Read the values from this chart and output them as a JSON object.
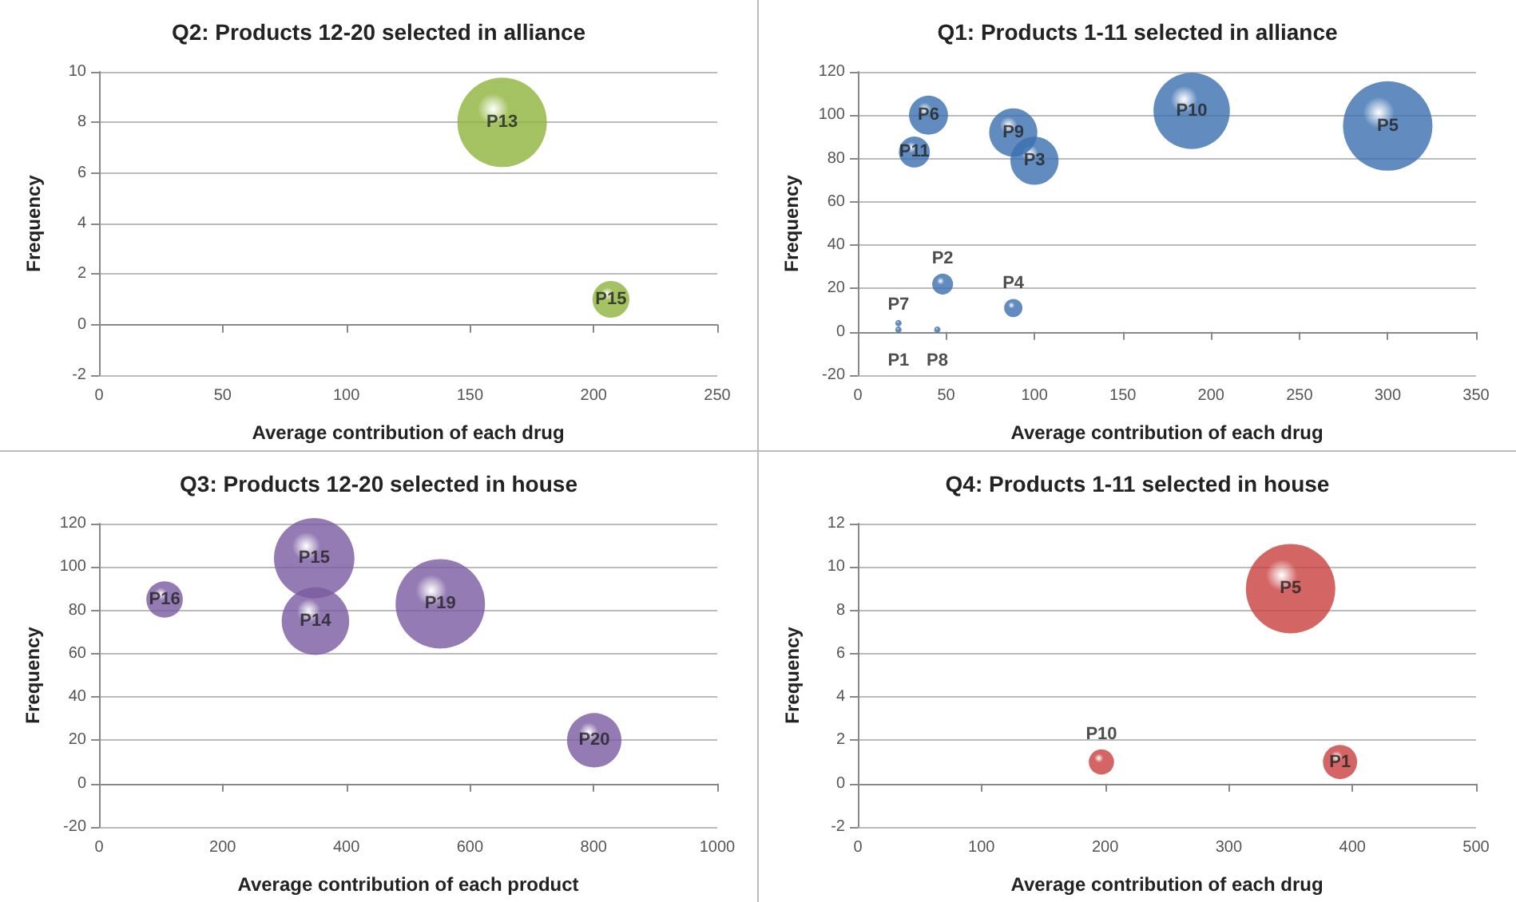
{
  "chart_data": [
    {
      "type": "bubble",
      "title": "Q2: Products 12-20 selected in alliance",
      "xlabel": "Average contribution of each drug",
      "ylabel": "Frequency",
      "x": [
        163,
        207
      ],
      "values": [
        8,
        1
      ],
      "sizes": [
        1,
        0.17
      ],
      "value_labels": [
        "P13",
        "P15"
      ],
      "color": "#8db33a",
      "xlim": [
        0,
        250
      ],
      "xticks": [
        0,
        50,
        100,
        150,
        200,
        250
      ],
      "ylim": [
        -2,
        10
      ],
      "yticks": [
        -2,
        0,
        2,
        4,
        6,
        8,
        10
      ],
      "grid": "y",
      "marker": "circle"
    },
    {
      "type": "bubble",
      "title": "Q1: Products 1-11 selected in alliance",
      "xlabel": "Average contribution of each drug",
      "ylabel": "Frequency",
      "x": [
        23,
        48,
        100,
        88,
        300,
        40,
        23,
        45,
        88,
        189,
        32
      ],
      "values": [
        1,
        22,
        79,
        11,
        95,
        100,
        4,
        1,
        92,
        102,
        83
      ],
      "sizes": [
        0.005,
        0.055,
        0.29,
        0.042,
        1,
        0.19,
        0.005,
        0.005,
        0.29,
        0.73,
        0.12
      ],
      "value_labels": [
        "P1",
        "P2",
        "P3",
        "P4",
        "P5",
        "P6",
        "P7",
        "P8",
        "P9",
        "P10",
        "P11"
      ],
      "color": "#3a6fb0",
      "xlim": [
        0,
        350
      ],
      "xticks": [
        0,
        50,
        100,
        150,
        200,
        250,
        300,
        350
      ],
      "ylim": [
        -20,
        120
      ],
      "yticks": [
        -20,
        0,
        20,
        40,
        60,
        80,
        100,
        120
      ],
      "grid": "y",
      "marker": "circle"
    },
    {
      "type": "bubble",
      "title": "Q3: Products 12-20 selected in house",
      "xlabel": "Average contribution of each product",
      "ylabel": "Frequency",
      "x": [
        350,
        348,
        106,
        552,
        801
      ],
      "values": [
        75,
        104,
        85,
        83,
        20
      ],
      "sizes": [
        0.57,
        0.81,
        0.166,
        1,
        0.37
      ],
      "value_labels": [
        "P14",
        "P15",
        "P16",
        "P19",
        "P20"
      ],
      "color": "#7a5aa0",
      "xlim": [
        0,
        1000
      ],
      "xticks": [
        0,
        200,
        400,
        600,
        800,
        1000
      ],
      "ylim": [
        -20,
        120
      ],
      "yticks": [
        -20,
        0,
        20,
        40,
        60,
        80,
        100,
        120
      ],
      "grid": "y",
      "marker": "circle"
    },
    {
      "type": "bubble",
      "title": "Q4: Products 1-11 selected in house",
      "xlabel": "Average contribution of each drug",
      "ylabel": "Frequency",
      "x": [
        390,
        350,
        197
      ],
      "values": [
        1,
        9,
        1
      ],
      "sizes": [
        0.146,
        1,
        0.08
      ],
      "value_labels": [
        "P1",
        "P5",
        "P10"
      ],
      "color": "#c8403e",
      "xlim": [
        0,
        500
      ],
      "xticks": [
        0,
        100,
        200,
        300,
        400,
        500
      ],
      "ylim": [
        -2,
        12
      ],
      "yticks": [
        -2,
        0,
        2,
        4,
        6,
        8,
        10,
        12
      ],
      "grid": "y",
      "marker": "circle"
    }
  ]
}
